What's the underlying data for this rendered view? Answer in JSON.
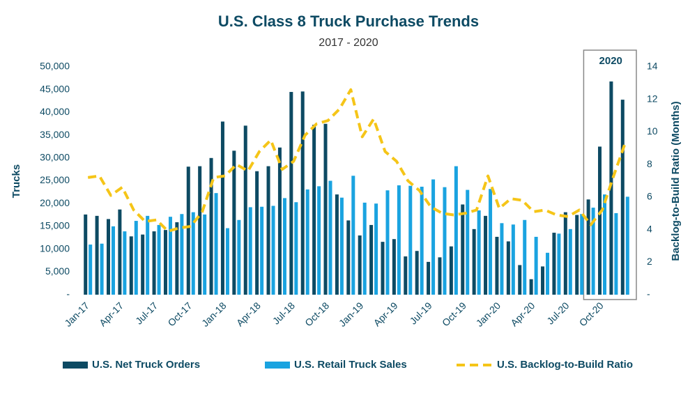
{
  "chart_data": {
    "type": "bar",
    "title": "U.S. Class 8 Truck Purchase Trends",
    "subtitle": "2017 - 2020",
    "y_label": "Trucks",
    "y2_label": "Backlog-to-Build Ratio (Months)",
    "annotation": "2020",
    "categories": [
      "Jan-17",
      null,
      null,
      "Apr-17",
      null,
      null,
      "Jul-17",
      null,
      null,
      "Oct-17",
      null,
      null,
      "Jan-18",
      null,
      null,
      "Apr-18",
      null,
      null,
      "Jul-18",
      null,
      null,
      "Oct-18",
      null,
      null,
      "Jan-19",
      null,
      null,
      "Apr-19",
      null,
      null,
      "Jul-19",
      null,
      null,
      "Oct-19",
      null,
      null,
      "Jan-20",
      null,
      null,
      "Apr-20",
      null,
      null,
      "Jul-20",
      null,
      null,
      "Oct-20",
      null,
      null
    ],
    "series": [
      {
        "name": "U.S. Net Truck Orders",
        "type": "bar",
        "color": "#0d4a63",
        "values": [
          17600,
          17300,
          16600,
          18700,
          12800,
          13200,
          13900,
          14200,
          15900,
          28100,
          28200,
          30000,
          38000,
          31600,
          37100,
          27100,
          28200,
          32300,
          44500,
          44600,
          37300,
          37500,
          22000,
          16300,
          13000,
          15300,
          11600,
          12200,
          8400,
          9600,
          7200,
          8200,
          10600,
          19800,
          14400,
          17300,
          12700,
          11700,
          6500,
          3400,
          6200,
          13600,
          18100,
          17500,
          20900,
          32500,
          46800,
          42800
        ]
      },
      {
        "name": "U.S. Retail Truck Sales",
        "type": "bar",
        "color": "#1aa3e0",
        "values": [
          11000,
          11200,
          15000,
          13900,
          16200,
          17300,
          15300,
          17100,
          17700,
          18100,
          17600,
          22300,
          14600,
          16400,
          19200,
          19300,
          19500,
          21200,
          20300,
          23100,
          23800,
          25000,
          21300,
          26100,
          20200,
          20000,
          22900,
          24000,
          23900,
          23700,
          25300,
          23600,
          28200,
          23000,
          18500,
          23200,
          15700,
          15400,
          16400,
          12700,
          9200,
          13400,
          14400,
          17700,
          19100,
          22000,
          17900,
          21500
        ]
      },
      {
        "name": "U.S. Backlog-to-Build Ratio",
        "type": "line",
        "axis": "y2",
        "color": "#f5c518",
        "values": [
          7.2,
          7.3,
          6.1,
          6.6,
          5.2,
          4.5,
          4.6,
          3.9,
          4.1,
          4.2,
          5.1,
          7.2,
          7.3,
          8.0,
          7.6,
          8.8,
          9.5,
          7.7,
          8.2,
          9.8,
          10.5,
          10.7,
          11.4,
          12.6,
          9.7,
          10.8,
          8.8,
          8.2,
          7.0,
          6.4,
          5.4,
          5.0,
          4.9,
          5.0,
          5.2,
          7.3,
          5.3,
          5.9,
          5.8,
          5.1,
          5.2,
          4.9,
          4.8,
          5.2,
          4.3,
          5.2,
          7.3,
          9.3
        ]
      }
    ],
    "ylim": [
      0,
      50000
    ],
    "yticks": [
      {
        "value": 0,
        "label": "-"
      },
      {
        "value": 5000,
        "label": "5,000"
      },
      {
        "value": 10000,
        "label": "10,000"
      },
      {
        "value": 15000,
        "label": "15,000"
      },
      {
        "value": 20000,
        "label": "20,000"
      },
      {
        "value": 25000,
        "label": "25,000"
      },
      {
        "value": 30000,
        "label": "30,000"
      },
      {
        "value": 35000,
        "label": "35,000"
      },
      {
        "value": 40000,
        "label": "40,000"
      },
      {
        "value": 45000,
        "label": "45,000"
      },
      {
        "value": 50000,
        "label": "50,000"
      }
    ],
    "y2lim": [
      0,
      14
    ],
    "y2ticks": [
      {
        "value": 0,
        "label": "-"
      },
      2,
      4,
      6,
      8,
      10,
      12,
      14
    ],
    "legend": "bottom"
  }
}
